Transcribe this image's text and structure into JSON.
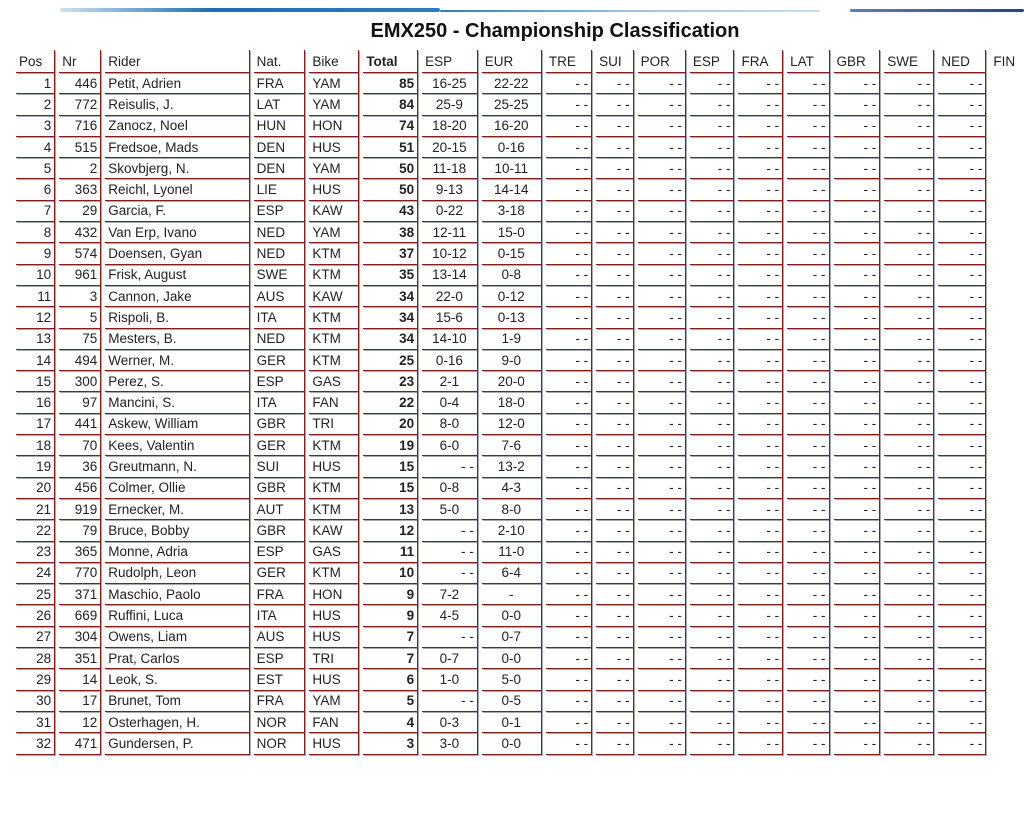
{
  "title": "EMX250 - Championship Classification",
  "colors": {
    "border": "#8b1a1a",
    "brush": "#1a6fb5"
  },
  "columns": [
    "Pos",
    "Nr",
    "Rider",
    "Nat.",
    "Bike",
    "Total",
    "ESP",
    "EUR",
    "TRE",
    "SUI",
    "POR",
    "ESP",
    "FRA",
    "LAT",
    "GBR",
    "SWE",
    "NED",
    "FIN"
  ],
  "empty_mark": "- -",
  "rows": [
    [
      "1",
      "446",
      "Petit, Adrien",
      "FRA",
      "YAM",
      "85",
      "16-25",
      "22-22"
    ],
    [
      "2",
      "772",
      "Reisulis, J.",
      "LAT",
      "YAM",
      "84",
      "25-9",
      "25-25"
    ],
    [
      "3",
      "716",
      "Zanocz, Noel",
      "HUN",
      "HON",
      "74",
      "18-20",
      "16-20"
    ],
    [
      "4",
      "515",
      "Fredsoe, Mads",
      "DEN",
      "HUS",
      "51",
      "20-15",
      "0-16"
    ],
    [
      "5",
      "2",
      "Skovbjerg, N.",
      "DEN",
      "YAM",
      "50",
      "11-18",
      "10-11"
    ],
    [
      "6",
      "363",
      "Reichl, Lyonel",
      "LIE",
      "HUS",
      "50",
      "9-13",
      "14-14"
    ],
    [
      "7",
      "29",
      "Garcia, F.",
      "ESP",
      "KAW",
      "43",
      "0-22",
      "3-18"
    ],
    [
      "8",
      "432",
      "Van Erp, Ivano",
      "NED",
      "YAM",
      "38",
      "12-11",
      "15-0"
    ],
    [
      "9",
      "574",
      "Doensen, Gyan",
      "NED",
      "KTM",
      "37",
      "10-12",
      "0-15"
    ],
    [
      "10",
      "961",
      "Frisk, August",
      "SWE",
      "KTM",
      "35",
      "13-14",
      "0-8"
    ],
    [
      "11",
      "3",
      "Cannon, Jake",
      "AUS",
      "KAW",
      "34",
      "22-0",
      "0-12"
    ],
    [
      "12",
      "5",
      "Rispoli, B.",
      "ITA",
      "KTM",
      "34",
      "15-6",
      "0-13"
    ],
    [
      "13",
      "75",
      "Mesters, B.",
      "NED",
      "KTM",
      "34",
      "14-10",
      "1-9"
    ],
    [
      "14",
      "494",
      "Werner, M.",
      "GER",
      "KTM",
      "25",
      "0-16",
      "9-0"
    ],
    [
      "15",
      "300",
      "Perez, S.",
      "ESP",
      "GAS",
      "23",
      "2-1",
      "20-0"
    ],
    [
      "16",
      "97",
      "Mancini, S.",
      "ITA",
      "FAN",
      "22",
      "0-4",
      "18-0"
    ],
    [
      "17",
      "441",
      "Askew, William",
      "GBR",
      "TRI",
      "20",
      "8-0",
      "12-0"
    ],
    [
      "18",
      "70",
      "Kees, Valentin",
      "GER",
      "KTM",
      "19",
      "6-0",
      "7-6"
    ],
    [
      "19",
      "36",
      "Greutmann, N.",
      "SUI",
      "HUS",
      "15",
      "- -",
      "13-2"
    ],
    [
      "20",
      "456",
      "Colmer, Ollie",
      "GBR",
      "KTM",
      "15",
      "0-8",
      "4-3"
    ],
    [
      "21",
      "919",
      "Ernecker, M.",
      "AUT",
      "KTM",
      "13",
      "5-0",
      "8-0"
    ],
    [
      "22",
      "79",
      "Bruce, Bobby",
      "GBR",
      "KAW",
      "12",
      "- -",
      "2-10"
    ],
    [
      "23",
      "365",
      "Monne, Adria",
      "ESP",
      "GAS",
      "11",
      "- -",
      "11-0"
    ],
    [
      "24",
      "770",
      "Rudolph, Leon",
      "GER",
      "KTM",
      "10",
      "- -",
      "6-4"
    ],
    [
      "25",
      "371",
      "Maschio, Paolo",
      "FRA",
      "HON",
      "9",
      "7-2",
      "-"
    ],
    [
      "26",
      "669",
      "Ruffini, Luca",
      "ITA",
      "HUS",
      "9",
      "4-5",
      "0-0"
    ],
    [
      "27",
      "304",
      "Owens, Liam",
      "AUS",
      "HUS",
      "7",
      "- -",
      "0-7"
    ],
    [
      "28",
      "351",
      "Prat, Carlos",
      "ESP",
      "TRI",
      "7",
      "0-7",
      "0-0"
    ],
    [
      "29",
      "14",
      "Leok, S.",
      "EST",
      "HUS",
      "6",
      "1-0",
      "5-0"
    ],
    [
      "30",
      "17",
      "Brunet, Tom",
      "FRA",
      "YAM",
      "5",
      "- -",
      "0-5"
    ],
    [
      "31",
      "12",
      "Osterhagen, H.",
      "NOR",
      "FAN",
      "4",
      "0-3",
      "0-1"
    ],
    [
      "32",
      "471",
      "Gundersen, P.",
      "NOR",
      "HUS",
      "3",
      "3-0",
      "0-0"
    ]
  ]
}
